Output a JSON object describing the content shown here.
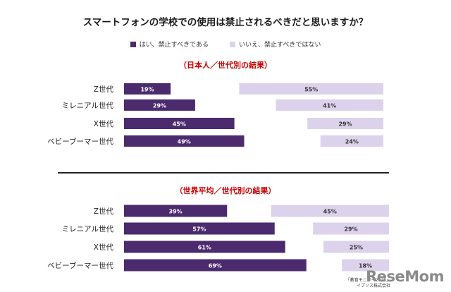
{
  "title": "スマートフォンの学校での使用は禁止されるべきだと思いますか？",
  "colors": {
    "yes": "#4b2a6e",
    "no": "#ddd2ec",
    "section_title": "#cc0000"
  },
  "legend": {
    "yes": "はい、禁止すべきである",
    "no": "いいえ、禁止すべきではない"
  },
  "chart_data": [
    {
      "type": "bar",
      "title": "（日本人／世代別の結果）",
      "categories": [
        "Z世代",
        "ミレニアル世代",
        "X世代",
        "ベビーブーマー世代"
      ],
      "series": [
        {
          "name": "はい、禁止すべきである",
          "values": [
            19,
            29,
            45,
            49
          ],
          "labels": [
            "19%",
            "29%",
            "45%",
            "49%"
          ]
        },
        {
          "name": "いいえ、禁止すべきではない",
          "values": [
            55,
            41,
            29,
            24
          ],
          "labels": [
            "55%",
            "41%",
            "29%",
            "24%"
          ]
        }
      ],
      "unit": "%"
    },
    {
      "type": "bar",
      "title": "（世界平均／世代別の結果）",
      "categories": [
        "Z世代",
        "ミレニアル世代",
        "X世代",
        "ベビーブーマー世代"
      ],
      "series": [
        {
          "name": "はい、禁止すべきである",
          "values": [
            39,
            57,
            61,
            69
          ],
          "labels": [
            "39%",
            "57%",
            "61%",
            "69%"
          ]
        },
        {
          "name": "いいえ、禁止すべきではない",
          "values": [
            45,
            29,
            25,
            18
          ],
          "labels": [
            "45%",
            "29%",
            "25%",
            "18%"
          ]
        }
      ],
      "unit": "%"
    }
  ],
  "source": {
    "line1": "「教育モニター2025」",
    "line2": "イプソス株式会社"
  },
  "watermark": "ReseMom"
}
